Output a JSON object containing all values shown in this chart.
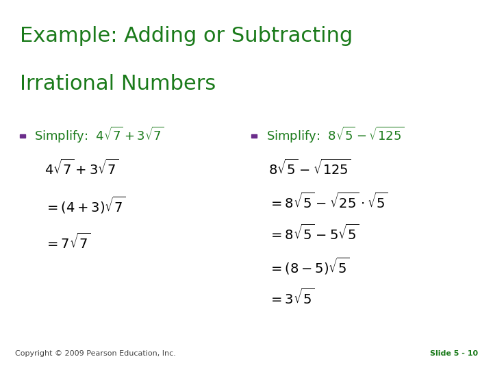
{
  "background_color": "#ffffff",
  "title_line1": "Example: Adding or Subtracting",
  "title_line2": "Irrational Numbers",
  "title_color": "#1a7a1a",
  "title_fontsize": 22,
  "bullet_color": "#6b2d8b",
  "bullet_text_color": "#1a7a1a",
  "math_color": "#000000",
  "copyright_text": "Copyright © 2009 Pearson Education, Inc.",
  "slide_label": "Slide 5 - 10",
  "footer_color": "#1a7a1a",
  "footer_fontsize": 8,
  "left_steps": [
    "$4\\sqrt{7}+3\\sqrt{7}$",
    "$=(4+3)\\sqrt{7}$",
    "$=7\\sqrt{7}$"
  ],
  "right_steps": [
    "$8\\sqrt{5}-\\sqrt{125}$",
    "$=8\\sqrt{5}-\\sqrt{25}\\cdot\\sqrt{5}$",
    "$=8\\sqrt{5}-5\\sqrt{5}$",
    "$=(8-5)\\sqrt{5}$",
    "$=3\\sqrt{5}$"
  ]
}
